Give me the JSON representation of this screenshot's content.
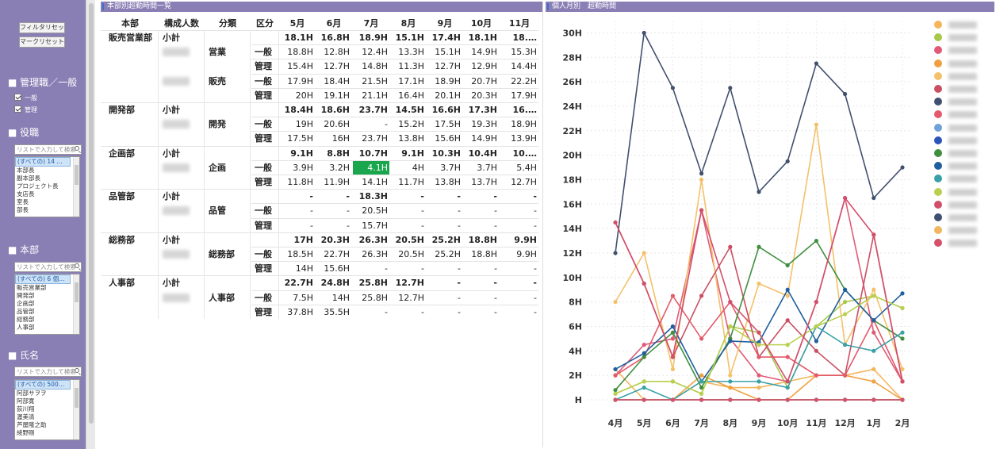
{
  "sidebar": {
    "reset_filter": "フィルタリセット",
    "reset_mark": "マークリセット",
    "sections": {
      "rank": {
        "title": "■ 管理職／一般",
        "options": [
          "一般",
          "管理"
        ]
      },
      "position": {
        "title": "■ 役職",
        "search_placeholder": "リストで入力して検索",
        "items": [
          "(すべての) 14 …",
          "本部長",
          "副本部長",
          "プロジェクト長",
          "支店長",
          "室長",
          "部長"
        ]
      },
      "division": {
        "title": "■ 本部",
        "search_placeholder": "リストで入力して検索",
        "items": [
          "(すべての) 6 個…",
          "販売営業部",
          "開発部",
          "企画部",
          "品管部",
          "総務部",
          "人事部"
        ]
      },
      "name": {
        "title": "■ 氏名",
        "search_placeholder": "リストで入力して検索",
        "items": [
          "(すべての) 500…",
          "阿部サヲヲ",
          "阿部寛",
          "荻川翔",
          "渥美清",
          "芦屋隆之助",
          "綾野剛"
        ]
      }
    }
  },
  "table": {
    "title": "本部別超勤時間一覧",
    "headers": [
      "本部",
      "構成人数",
      "分類",
      "区分",
      "5月",
      "6月",
      "7月",
      "8月",
      "9月",
      "10月",
      "11月"
    ],
    "rows": [
      {
        "dept": "販売営業部",
        "sub": "小計",
        "bold": true,
        "v": [
          "18.1H",
          "16.8H",
          "18.9H",
          "15.1H",
          "17.4H",
          "18.1H",
          "18.…"
        ]
      },
      {
        "cls": "営業",
        "kubun": "一般",
        "v": [
          "18.8H",
          "12.8H",
          "12.4H",
          "13.3H",
          "15.1H",
          "14.9H",
          "15.3H"
        ]
      },
      {
        "kubun": "管理",
        "v": [
          "15.4H",
          "12.7H",
          "14.8H",
          "11.3H",
          "12.7H",
          "12.9H",
          "14.4H"
        ]
      },
      {
        "cls": "販売",
        "kubun": "一般",
        "v": [
          "17.9H",
          "18.4H",
          "21.5H",
          "17.1H",
          "18.9H",
          "20.7H",
          "22.2H"
        ]
      },
      {
        "kubun": "管理",
        "v": [
          "20H",
          "19.1H",
          "21.1H",
          "16.4H",
          "20.1H",
          "20.3H",
          "17.9H"
        ]
      },
      {
        "dept": "開発部",
        "sub": "小計",
        "bold": true,
        "v": [
          "18.4H",
          "18.6H",
          "23.7H",
          "14.5H",
          "16.6H",
          "17.3H",
          "16.…"
        ]
      },
      {
        "cls": "開発",
        "kubun": "一般",
        "v": [
          "19H",
          "20.6H",
          "-",
          "15.2H",
          "17.5H",
          "19.3H",
          "18.9H"
        ]
      },
      {
        "kubun": "管理",
        "v": [
          "17.5H",
          "16H",
          "23.7H",
          "13.8H",
          "15.6H",
          "14.9H",
          "13.9H"
        ]
      },
      {
        "dept": "企画部",
        "sub": "小計",
        "bold": true,
        "v": [
          "9.1H",
          "8.8H",
          "10.7H",
          "9.1H",
          "10.3H",
          "10.4H",
          "10.…"
        ]
      },
      {
        "cls": "企画",
        "kubun": "一般",
        "v": [
          "3.9H",
          "3.2H",
          "4.1H",
          "4H",
          "3.7H",
          "3.7H",
          "5.4H"
        ],
        "highlight_col": 2
      },
      {
        "kubun": "管理",
        "v": [
          "11.8H",
          "11.9H",
          "14.1H",
          "11.7H",
          "13.8H",
          "13.7H",
          "12.7H"
        ]
      },
      {
        "dept": "品管部",
        "sub": "小計",
        "bold": true,
        "v": [
          "-",
          "-",
          "18.3H",
          "-",
          "-",
          "-",
          "-"
        ]
      },
      {
        "cls": "品管",
        "kubun": "一般",
        "v": [
          "-",
          "-",
          "20.5H",
          "-",
          "-",
          "-",
          "-"
        ]
      },
      {
        "kubun": "管理",
        "v": [
          "-",
          "-",
          "15.7H",
          "-",
          "-",
          "-",
          "-"
        ]
      },
      {
        "dept": "総務部",
        "sub": "小計",
        "bold": true,
        "v": [
          "17H",
          "20.3H",
          "26.3H",
          "20.5H",
          "25.2H",
          "18.8H",
          "9.9H"
        ]
      },
      {
        "cls": "総務部",
        "kubun": "一般",
        "v": [
          "18.5H",
          "22.7H",
          "26.3H",
          "20.5H",
          "25.2H",
          "18.8H",
          "9.9H"
        ]
      },
      {
        "kubun": "管理",
        "v": [
          "14H",
          "15.6H",
          "-",
          "-",
          "-",
          "-",
          "-"
        ]
      },
      {
        "dept": "人事部",
        "sub": "小計",
        "bold": true,
        "v": [
          "22.7H",
          "24.8H",
          "25.8H",
          "12.7H",
          "-",
          "-",
          "-"
        ]
      },
      {
        "cls": "人事部",
        "kubun": "一般",
        "v": [
          "7.5H",
          "14H",
          "25.8H",
          "12.7H",
          "-",
          "-",
          "-"
        ]
      },
      {
        "kubun": "管理",
        "v": [
          "37.8H",
          "35.5H",
          "-",
          "-",
          "-",
          "-",
          "-"
        ]
      }
    ],
    "highlight_color": "#19a64c"
  },
  "chart": {
    "title": "個人月別　超勤時間",
    "chart_data": {
      "type": "line",
      "categories": [
        "4月",
        "5月",
        "6月",
        "7月",
        "8月",
        "9月",
        "10月",
        "11月",
        "12月",
        "1月",
        "2月"
      ],
      "y_tick_labels": [
        "H",
        "2H",
        "4H",
        "6H",
        "8H",
        "10H",
        "12H",
        "14H",
        "16H",
        "18H",
        "20H",
        "22H",
        "24H",
        "26H",
        "28H",
        "30H"
      ],
      "ylim": [
        0,
        31
      ],
      "grid": true,
      "legend_position": "right",
      "series": [
        {
          "color": "#f5b55a",
          "values": [
            2.5,
            0,
            0,
            1.5,
            1,
            1,
            1.5,
            2,
            2,
            2.5,
            0
          ]
        },
        {
          "color": "#a8c84a",
          "values": [
            0.5,
            1.5,
            1.5,
            0.5,
            6,
            5.5,
            1,
            6,
            8,
            8.5,
            7.5
          ]
        },
        {
          "color": "#e05a78",
          "values": [
            2,
            4.5,
            5,
            15.5,
            5,
            2,
            1.5,
            8,
            16.5,
            5.5,
            1.5
          ]
        },
        {
          "color": "#f0a040",
          "values": [
            0,
            0,
            0,
            2,
            1,
            0,
            0,
            2,
            2,
            1.5,
            0
          ]
        },
        {
          "color": "#f4c16a",
          "values": [
            8,
            12,
            2.5,
            18,
            2,
            9.5,
            8.5,
            22.5,
            4.5,
            9,
            2.5
          ]
        },
        {
          "color": "#c94f62",
          "values": [
            14.5,
            9.5,
            3.5,
            8.5,
            12.5,
            3.5,
            6.5,
            4,
            2,
            13.5,
            1.5
          ]
        },
        {
          "color": "#41506e",
          "values": [
            12,
            30,
            25.5,
            18.5,
            25.5,
            17,
            19.5,
            27.5,
            25,
            16.5,
            19
          ]
        },
        {
          "color": "#e35a6a",
          "values": [
            2,
            3.5,
            8.5,
            5,
            8,
            3.5,
            3.5,
            2,
            2,
            6.5,
            1.5
          ]
        },
        {
          "color": "#6fa2d8",
          "values": [
            0,
            0,
            0,
            0,
            0,
            0,
            0,
            0,
            0,
            0,
            0
          ]
        },
        {
          "color": "#2d54b8",
          "values": [
            0,
            0,
            0,
            0,
            0,
            0,
            0,
            0,
            0,
            0,
            0
          ]
        },
        {
          "color": "#3f8f3f",
          "values": [
            0.8,
            3.5,
            5.5,
            1,
            5,
            12.5,
            11,
            13,
            9,
            6.5,
            5
          ]
        },
        {
          "color": "#1f5f9f",
          "values": [
            2.5,
            3.8,
            6,
            1.5,
            4.8,
            4.7,
            9,
            4.8,
            9,
            6.5,
            8.7
          ]
        },
        {
          "color": "#3aa0a8",
          "values": [
            0,
            1,
            0,
            1.5,
            1.5,
            1.5,
            1,
            6,
            4.5,
            4,
            5.5
          ]
        },
        {
          "color": "#b8d050",
          "values": [
            0.5,
            1.5,
            1.5,
            0.5,
            6,
            4.5,
            4.5,
            6,
            7,
            8.5,
            7.5
          ]
        },
        {
          "color": "#d24f6a",
          "values": [
            14.5,
            9.5,
            3.5,
            15.5,
            8,
            5.5,
            1.5,
            8,
            16.5,
            13.5,
            1.5
          ]
        },
        {
          "color": "#3e4f72",
          "values": [
            0,
            0,
            0,
            0,
            0,
            0,
            0,
            0,
            0,
            0,
            0
          ]
        },
        {
          "color": "#f0b660",
          "values": [
            0,
            0,
            0,
            0,
            0,
            0,
            0,
            0,
            0,
            0,
            0
          ]
        },
        {
          "color": "#d5506a",
          "values": [
            0,
            0,
            0,
            0,
            0,
            0,
            0,
            0,
            0,
            0,
            0
          ]
        }
      ]
    }
  }
}
